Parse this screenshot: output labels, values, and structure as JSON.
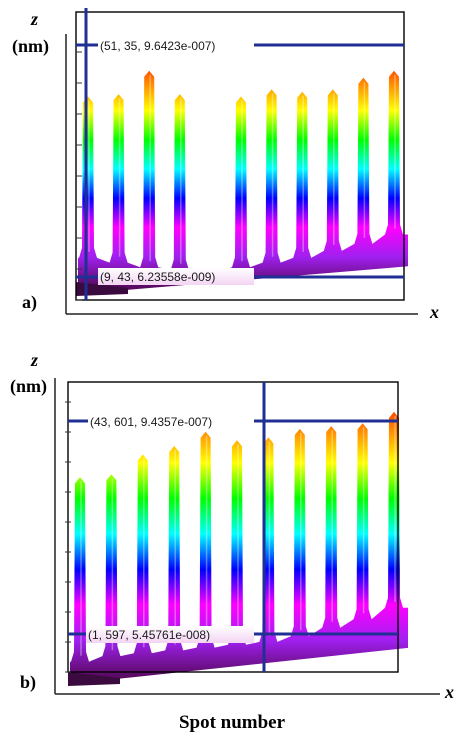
{
  "figure": {
    "x_title": "Spot number",
    "colors": {
      "cursor": "#1f2f94",
      "axis": "#222222",
      "frame": "#000000",
      "label_box_top": "#ffffff",
      "label_box_bottom": "#f3d4f3"
    },
    "colormap": [
      "#5a0a63",
      "#a020f0",
      "#ff00ff",
      "#0000ff",
      "#00ffff",
      "#00ff00",
      "#ffff00",
      "#ff8000",
      "#ff0000"
    ]
  },
  "chart_data": [
    {
      "type": "area",
      "panel_label": "a)",
      "x_axis_label": "x",
      "z_axis_label": "z",
      "z_unit": "(nm)",
      "spots": 11,
      "peak_heights_relative": [
        0.81,
        0.82,
        0.92,
        0.82,
        0.0,
        0.81,
        0.84,
        0.83,
        0.84,
        0.89,
        0.92
      ],
      "baseline_relative": [
        0.12,
        0.1,
        0.08,
        0.07,
        0.06,
        0.08,
        0.1,
        0.12,
        0.15,
        0.18,
        0.22
      ],
      "cursor_labels": [
        {
          "text": "(51, 35, 9.6423e-007)",
          "role": "max"
        },
        {
          "text": "(9, 43, 6.23558e-009)",
          "role": "min"
        }
      ]
    },
    {
      "type": "area",
      "panel_label": "b)",
      "x_axis_label": "x",
      "z_axis_label": "z",
      "z_unit": "(nm)",
      "spots": 11,
      "peak_heights_relative": [
        0.7,
        0.71,
        0.78,
        0.81,
        0.86,
        0.83,
        0.84,
        0.87,
        0.88,
        0.89,
        0.93
      ],
      "baseline_relative": [
        0.05,
        0.07,
        0.08,
        0.09,
        0.1,
        0.11,
        0.12,
        0.14,
        0.17,
        0.2,
        0.24
      ],
      "cursor_labels": [
        {
          "text": "(43, 601, 9.4357e-007)",
          "role": "max"
        },
        {
          "text": "(1, 597, 5.45761e-008)",
          "role": "min"
        }
      ]
    }
  ]
}
